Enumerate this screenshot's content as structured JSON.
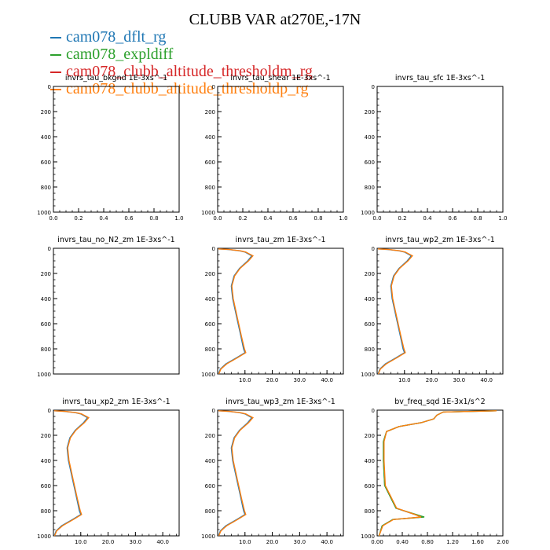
{
  "title": "CLUBB VAR at270E,-17N",
  "legend": [
    {
      "name": "cam078_dflt_rg",
      "color": "#1f77b4"
    },
    {
      "name": "cam078_expldiff",
      "color": "#2ca02c"
    },
    {
      "name": "cam078_clubb_altitude_thresholdm_rg",
      "color": "#d62728"
    },
    {
      "name": "cam078_clubb_altitude_thresholdp_rg",
      "color": "#ff7f0e"
    }
  ],
  "chart_data": [
    {
      "type": "line",
      "title": "invrs_tau_bkgnd   1E-3xs^-1",
      "xlim": [
        0,
        1
      ],
      "ylim": [
        1000,
        0
      ],
      "xticks": [
        "0.0",
        "0.2",
        "0.4",
        "0.6",
        "0.8",
        "1.0"
      ],
      "yticks": [
        "0",
        "200",
        "400",
        "600",
        "800",
        "1000"
      ],
      "series": [
        {
          "name": "cam078_dflt_rg",
          "x": [],
          "y": []
        }
      ]
    },
    {
      "type": "line",
      "title": "invrs_tau_shear   1E-3xs^-1",
      "xlim": [
        0,
        1
      ],
      "ylim": [
        1000,
        0
      ],
      "xticks": [
        "0.0",
        "0.2",
        "0.4",
        "0.6",
        "0.8",
        "1.0"
      ],
      "yticks": [
        "0",
        "200",
        "400",
        "600",
        "800",
        "1000"
      ],
      "series": [
        {
          "name": "cam078_dflt_rg",
          "x": [],
          "y": []
        }
      ]
    },
    {
      "type": "line",
      "title": "invrs_tau_sfc   1E-3xs^-1",
      "xlim": [
        0,
        1
      ],
      "ylim": [
        1000,
        0
      ],
      "xticks": [
        "0.0",
        "0.2",
        "0.4",
        "0.6",
        "0.8",
        "1.0"
      ],
      "yticks": [
        "0",
        "200",
        "400",
        "600",
        "800",
        "1000"
      ],
      "series": [
        {
          "name": "cam078_dflt_rg",
          "x": [],
          "y": []
        }
      ]
    },
    {
      "type": "line",
      "title": "invrs_tau_no_N2_zm   1E-3xs^-1",
      "xlim": [
        0,
        1
      ],
      "ylim": [
        1000,
        0
      ],
      "xticks": [],
      "yticks": [
        "0",
        "200",
        "400",
        "600",
        "800",
        "1000"
      ],
      "series": [
        {
          "name": "cam078_dflt_rg",
          "x": [],
          "y": []
        }
      ]
    },
    {
      "type": "line",
      "title": "invrs_tau_zm   1E-3xs^-1",
      "xlim": [
        0,
        46
      ],
      "ylim": [
        1000,
        0
      ],
      "xticks": [
        "10.0",
        "20.0",
        "30.0",
        "40.0"
      ],
      "yticks": [
        "0",
        "200",
        "400",
        "600",
        "800",
        "1000"
      ],
      "series": [
        {
          "name": "cam078_dflt_rg",
          "x": [
            0.3,
            4,
            8,
            10,
            12.5,
            11,
            8,
            6,
            5,
            5.5,
            7,
            8.5,
            9.5,
            10,
            7,
            3,
            1,
            0.3
          ],
          "y": [
            5,
            10,
            20,
            30,
            60,
            100,
            160,
            220,
            300,
            400,
            550,
            700,
            800,
            830,
            870,
            920,
            960,
            1000
          ]
        },
        {
          "name": "cam078_clubb_altitude_thresholdp_rg",
          "x": [
            0.3,
            4.3,
            8.3,
            10.3,
            12.9,
            11.3,
            8.2,
            6.2,
            5.2,
            5.7,
            7.2,
            8.7,
            9.8,
            10.3,
            7.3,
            3.3,
            1.2,
            0.4
          ],
          "y": [
            5,
            10,
            20,
            30,
            60,
            100,
            160,
            220,
            300,
            400,
            550,
            700,
            800,
            830,
            870,
            920,
            960,
            1000
          ]
        }
      ]
    },
    {
      "type": "line",
      "title": "invrs_tau_wp2_zm   1E-3xs^-1",
      "xlim": [
        0,
        46
      ],
      "ylim": [
        1000,
        0
      ],
      "xticks": [
        "10.0",
        "20.0",
        "30.0",
        "40.0"
      ],
      "yticks": [
        "0",
        "200",
        "400",
        "600",
        "800",
        "1000"
      ],
      "series": [
        {
          "name": "cam078_dflt_rg",
          "x": [
            0.3,
            4,
            8,
            10,
            12.5,
            11,
            8,
            6,
            5,
            5.5,
            7,
            8.5,
            9.5,
            10,
            7,
            3,
            1,
            0.3
          ],
          "y": [
            5,
            10,
            20,
            30,
            60,
            100,
            160,
            220,
            300,
            400,
            550,
            700,
            800,
            830,
            870,
            920,
            960,
            1000
          ]
        },
        {
          "name": "cam078_clubb_altitude_thresholdp_rg",
          "x": [
            0.3,
            4.3,
            8.3,
            10.3,
            12.9,
            11.3,
            8.2,
            6.2,
            5.2,
            5.7,
            7.2,
            8.7,
            9.8,
            10.3,
            7.3,
            3.3,
            1.2,
            0.4
          ],
          "y": [
            5,
            10,
            20,
            30,
            60,
            100,
            160,
            220,
            300,
            400,
            550,
            700,
            800,
            830,
            870,
            920,
            960,
            1000
          ]
        }
      ]
    },
    {
      "type": "line",
      "title": "invrs_tau_xp2_zm   1E-3xs^-1",
      "xlim": [
        0,
        46
      ],
      "ylim": [
        1000,
        0
      ],
      "xticks": [
        "10.0",
        "20.0",
        "30.0",
        "40.0"
      ],
      "yticks": [
        "0",
        "200",
        "400",
        "600",
        "800",
        "1000"
      ],
      "series": [
        {
          "name": "cam078_dflt_rg",
          "x": [
            0.3,
            4,
            8,
            10,
            12.5,
            11,
            8,
            6,
            5,
            5.5,
            7,
            8.5,
            9.5,
            10,
            7,
            3,
            1,
            0.3
          ],
          "y": [
            5,
            10,
            20,
            30,
            60,
            100,
            160,
            220,
            300,
            400,
            550,
            700,
            800,
            830,
            870,
            920,
            960,
            1000
          ]
        },
        {
          "name": "cam078_clubb_altitude_thresholdp_rg",
          "x": [
            0.3,
            4.3,
            8.3,
            10.3,
            12.9,
            11.3,
            8.2,
            6.2,
            5.2,
            5.7,
            7.2,
            8.7,
            9.8,
            10.3,
            7.3,
            3.3,
            1.2,
            0.4
          ],
          "y": [
            5,
            10,
            20,
            30,
            60,
            100,
            160,
            220,
            300,
            400,
            550,
            700,
            800,
            830,
            870,
            920,
            960,
            1000
          ]
        }
      ]
    },
    {
      "type": "line",
      "title": "invrs_tau_wp3_zm   1E-3xs^-1",
      "xlim": [
        0,
        46
      ],
      "ylim": [
        1000,
        0
      ],
      "xticks": [
        "10.0",
        "20.0",
        "30.0",
        "40.0"
      ],
      "yticks": [
        "0",
        "200",
        "400",
        "600",
        "800",
        "1000"
      ],
      "series": [
        {
          "name": "cam078_dflt_rg",
          "x": [
            0.3,
            4,
            8,
            10,
            12.5,
            11,
            8,
            6,
            5,
            5.5,
            7,
            8.5,
            9.5,
            10,
            7,
            3,
            1,
            0.3
          ],
          "y": [
            5,
            10,
            20,
            30,
            60,
            100,
            160,
            220,
            300,
            400,
            550,
            700,
            800,
            830,
            870,
            920,
            960,
            1000
          ]
        },
        {
          "name": "cam078_clubb_altitude_thresholdp_rg",
          "x": [
            0.3,
            4.3,
            8.3,
            10.3,
            12.9,
            11.3,
            8.2,
            6.2,
            5.2,
            5.7,
            7.2,
            8.7,
            9.8,
            10.3,
            7.3,
            3.3,
            1.2,
            0.4
          ],
          "y": [
            5,
            10,
            20,
            30,
            60,
            100,
            160,
            220,
            300,
            400,
            550,
            700,
            800,
            830,
            870,
            920,
            960,
            1000
          ]
        }
      ]
    },
    {
      "type": "line",
      "title": "bv_freq_sqd   1E-3x1/s^2",
      "xlim": [
        0,
        2
      ],
      "ylim": [
        1000,
        0
      ],
      "xticks": [
        "0.00",
        "0.40",
        "0.80",
        "1.20",
        "1.60",
        "2.00"
      ],
      "yticks": [
        "0",
        "200",
        "400",
        "600",
        "800",
        "1000"
      ],
      "series": [
        {
          "name": "cam078_dflt_rg",
          "x": [
            1.9,
            1.05,
            0.95,
            0.9,
            0.7,
            0.35,
            0.15,
            0.1,
            0.1,
            0.12,
            0.3,
            0.6,
            0.72,
            0.25,
            0.08,
            0.03
          ],
          "y": [
            5,
            15,
            40,
            70,
            100,
            130,
            170,
            250,
            400,
            600,
            780,
            830,
            850,
            870,
            920,
            1000
          ]
        },
        {
          "name": "cam078_expldiff",
          "x": [
            1.9,
            1.05,
            0.95,
            0.9,
            0.7,
            0.35,
            0.15,
            0.1,
            0.1,
            0.12,
            0.3,
            0.62,
            0.75,
            0.25,
            0.08,
            0.03
          ],
          "y": [
            5,
            15,
            40,
            70,
            100,
            130,
            170,
            250,
            400,
            600,
            780,
            830,
            850,
            870,
            920,
            1000
          ]
        },
        {
          "name": "cam078_clubb_altitude_thresholdp_rg",
          "x": [
            1.9,
            1.05,
            0.95,
            0.9,
            0.7,
            0.35,
            0.15,
            0.11,
            0.11,
            0.13,
            0.31,
            0.6,
            0.7,
            0.26,
            0.09,
            0.03
          ],
          "y": [
            5,
            15,
            40,
            70,
            100,
            130,
            170,
            250,
            400,
            600,
            780,
            830,
            850,
            870,
            920,
            1000
          ]
        }
      ]
    }
  ]
}
